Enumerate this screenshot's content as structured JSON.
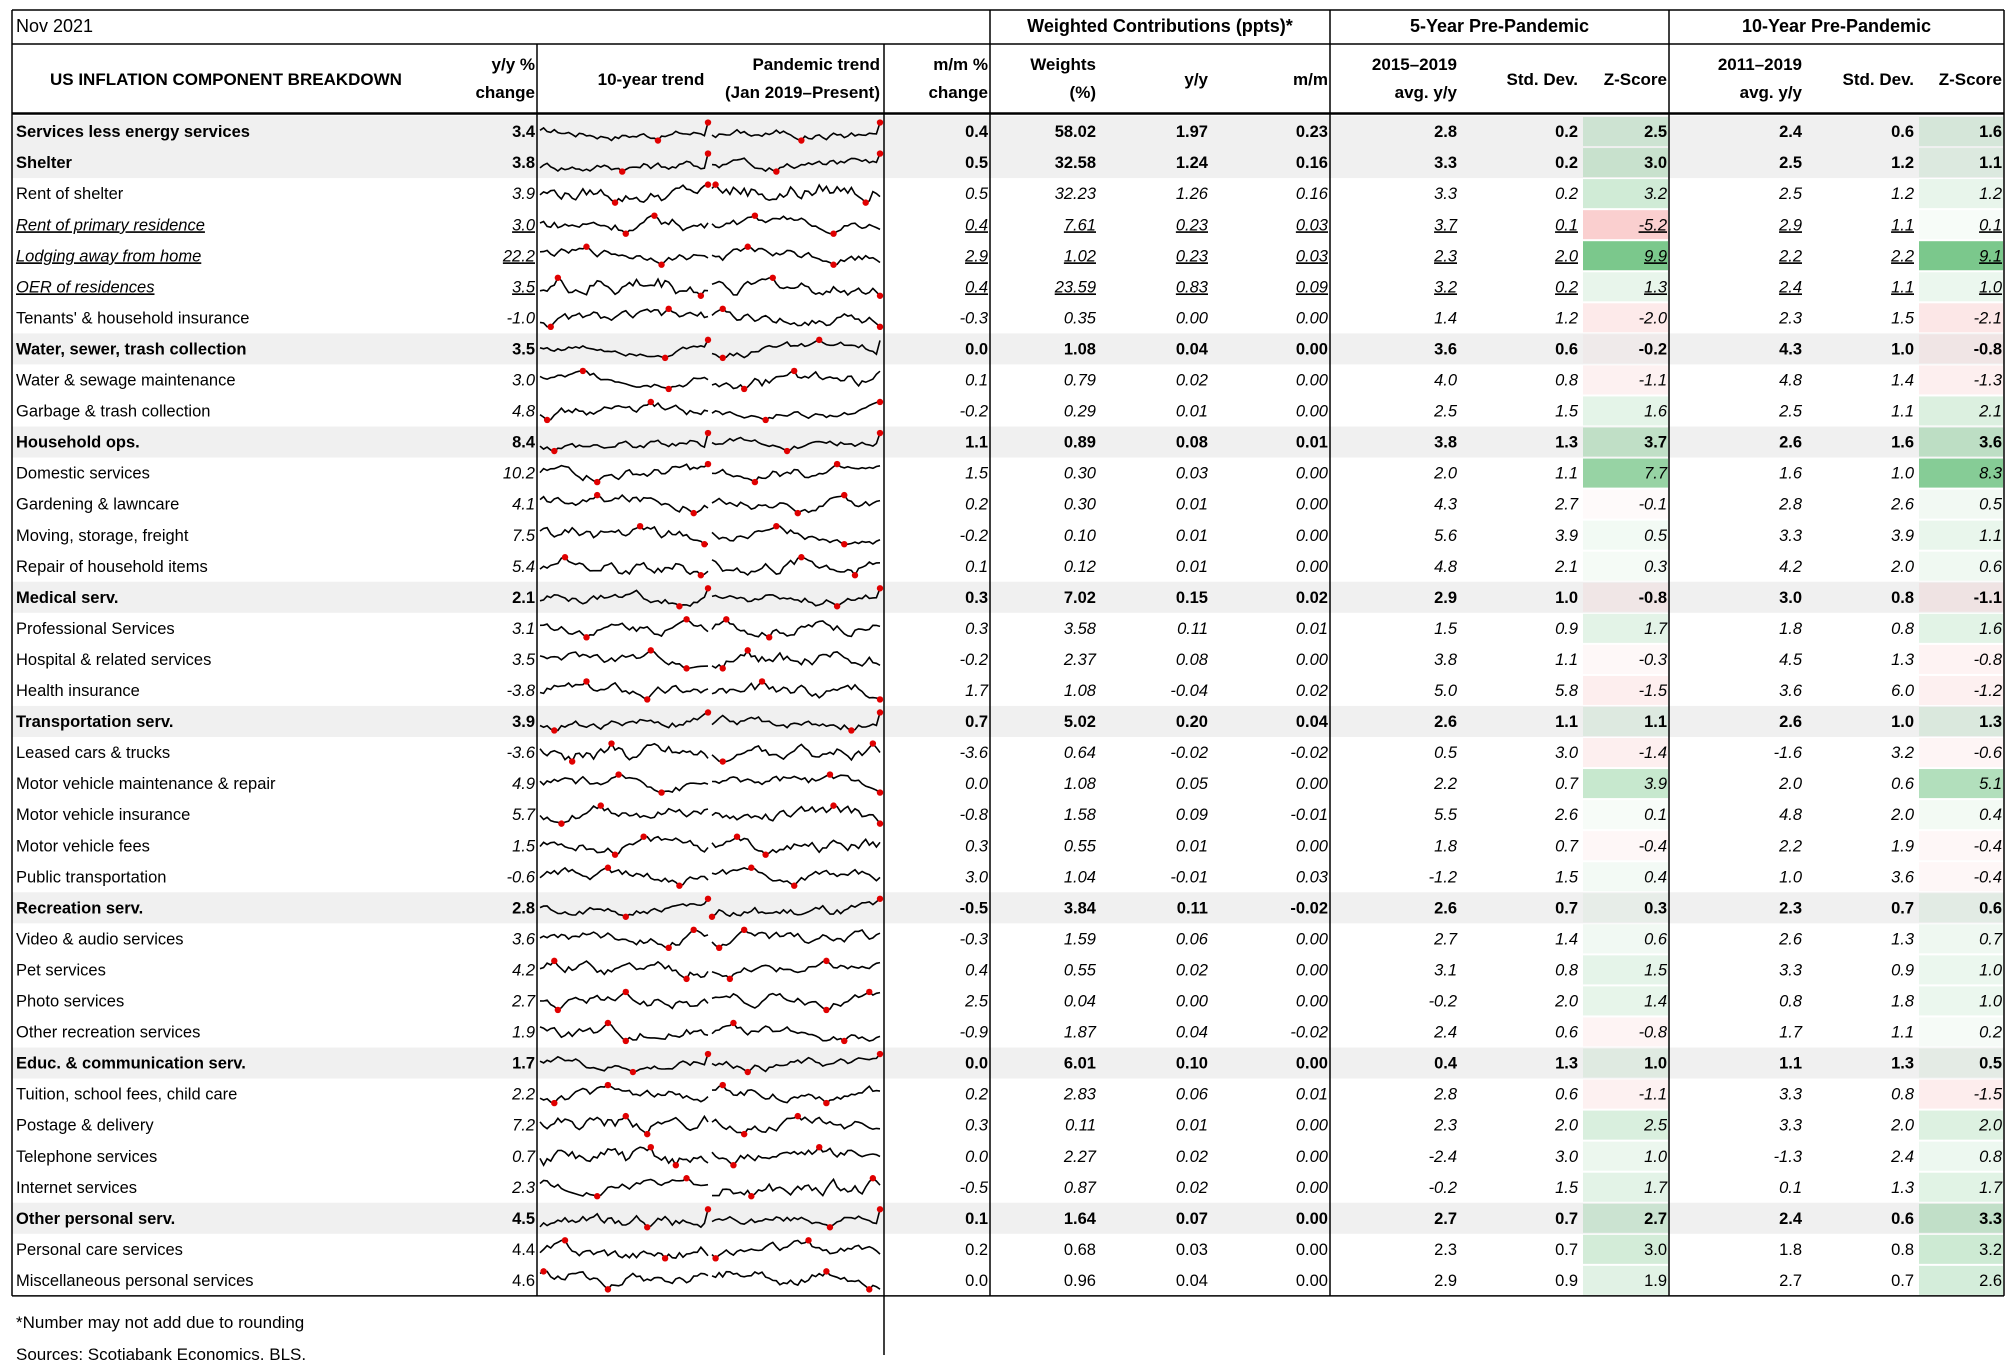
{
  "date_label": "Nov 2021",
  "group_headers": {
    "weighted": "Weighted Contributions (ppts)*",
    "five_year": "5-Year Pre-Pandemic",
    "ten_year": "10-Year Pre-Pandemic"
  },
  "columns": {
    "name": "US INFLATION COMPONENT BREAKDOWN",
    "yy_line1": "y/y %",
    "yy_line2": "change",
    "trend10": "10-year trend",
    "pandemic_line1": "Pandemic trend",
    "pandemic_line2": "(Jan 2019–Present)",
    "mm_line1": "m/m %",
    "mm_line2": "change",
    "weights_line1": "Weights",
    "weights_line2": "(%)",
    "w_yy": "y/y",
    "w_mm": "m/m",
    "avg5_line1": "2015–2019",
    "avg5_line2": "avg. y/y",
    "std5": "Std. Dev.",
    "z5": "Z-Score",
    "avg10_line1": "2011–2019",
    "avg10_line2": "avg. y/y",
    "std10": "Std. Dev.",
    "z10": "Z-Score"
  },
  "rows": [
    {
      "name": "Services less energy services",
      "style": "bold",
      "yy": "3.4",
      "mm": "0.4",
      "weights": "58.02",
      "w_yy": "1.97",
      "w_mm": "0.23",
      "avg5": "2.8",
      "std5": "0.2",
      "z5": "2.5",
      "avg10": "2.4",
      "std10": "0.6",
      "z10": "1.6"
    },
    {
      "name": "Shelter",
      "style": "bold",
      "yy": "3.8",
      "mm": "0.5",
      "weights": "32.58",
      "w_yy": "1.24",
      "w_mm": "0.16",
      "avg5": "3.3",
      "std5": "0.2",
      "z5": "3.0",
      "avg10": "2.5",
      "std10": "1.2",
      "z10": "1.1"
    },
    {
      "name": "Rent of shelter",
      "style": "italic",
      "yy": "3.9",
      "mm": "0.5",
      "weights": "32.23",
      "w_yy": "1.26",
      "w_mm": "0.16",
      "avg5": "3.3",
      "std5": "0.2",
      "z5": "3.2",
      "avg10": "2.5",
      "std10": "1.2",
      "z10": "1.2"
    },
    {
      "name": "Rent of  primary residence",
      "style": "underline",
      "yy": "3.0",
      "mm": "0.4",
      "weights": "7.61",
      "w_yy": "0.23",
      "w_mm": "0.03",
      "avg5": "3.7",
      "std5": "0.1",
      "z5": "-5.2",
      "avg10": "2.9",
      "std10": "1.1",
      "z10": "0.1"
    },
    {
      "name": "Lodging away from home",
      "style": "underline",
      "yy": "22.2",
      "mm": "2.9",
      "weights": "1.02",
      "w_yy": "0.23",
      "w_mm": "0.03",
      "avg5": "2.3",
      "std5": "2.0",
      "z5": "9.9",
      "avg10": "2.2",
      "std10": "2.2",
      "z10": "9.1"
    },
    {
      "name": "OER of residences",
      "style": "underline",
      "yy": "3.5",
      "mm": "0.4",
      "weights": "23.59",
      "w_yy": "0.83",
      "w_mm": "0.09",
      "avg5": "3.2",
      "std5": "0.2",
      "z5": "1.3",
      "avg10": "2.4",
      "std10": "1.1",
      "z10": "1.0"
    },
    {
      "name": "Tenants' & household insurance",
      "style": "italic",
      "yy": "-1.0",
      "mm": "-0.3",
      "weights": "0.35",
      "w_yy": "0.00",
      "w_mm": "0.00",
      "avg5": "1.4",
      "std5": "1.2",
      "z5": "-2.0",
      "avg10": "2.3",
      "std10": "1.5",
      "z10": "-2.1"
    },
    {
      "name": "Water, sewer, trash collection",
      "style": "bold",
      "yy": "3.5",
      "mm": "0.0",
      "weights": "1.08",
      "w_yy": "0.04",
      "w_mm": "0.00",
      "avg5": "3.6",
      "std5": "0.6",
      "z5": "-0.2",
      "avg10": "4.3",
      "std10": "1.0",
      "z10": "-0.8"
    },
    {
      "name": "Water & sewage maintenance",
      "style": "italic",
      "yy": "3.0",
      "mm": "0.1",
      "weights": "0.79",
      "w_yy": "0.02",
      "w_mm": "0.00",
      "avg5": "4.0",
      "std5": "0.8",
      "z5": "-1.1",
      "avg10": "4.8",
      "std10": "1.4",
      "z10": "-1.3"
    },
    {
      "name": "Garbage & trash collection",
      "style": "italic",
      "yy": "4.8",
      "mm": "-0.2",
      "weights": "0.29",
      "w_yy": "0.01",
      "w_mm": "0.00",
      "avg5": "2.5",
      "std5": "1.5",
      "z5": "1.6",
      "avg10": "2.5",
      "std10": "1.1",
      "z10": "2.1"
    },
    {
      "name": "Household ops.",
      "style": "bold",
      "yy": "8.4",
      "mm": "1.1",
      "weights": "0.89",
      "w_yy": "0.08",
      "w_mm": "0.01",
      "avg5": "3.8",
      "std5": "1.3",
      "z5": "3.7",
      "avg10": "2.6",
      "std10": "1.6",
      "z10": "3.6"
    },
    {
      "name": "Domestic services",
      "style": "italic",
      "yy": "10.2",
      "mm": "1.5",
      "weights": "0.30",
      "w_yy": "0.03",
      "w_mm": "0.00",
      "avg5": "2.0",
      "std5": "1.1",
      "z5": "7.7",
      "avg10": "1.6",
      "std10": "1.0",
      "z10": "8.3"
    },
    {
      "name": "Gardening & lawncare",
      "style": "italic",
      "yy": "4.1",
      "mm": "0.2",
      "weights": "0.30",
      "w_yy": "0.01",
      "w_mm": "0.00",
      "avg5": "4.3",
      "std5": "2.7",
      "z5": "-0.1",
      "avg10": "2.8",
      "std10": "2.6",
      "z10": "0.5"
    },
    {
      "name": "Moving, storage, freight",
      "style": "italic",
      "yy": "7.5",
      "mm": "-0.2",
      "weights": "0.10",
      "w_yy": "0.01",
      "w_mm": "0.00",
      "avg5": "5.6",
      "std5": "3.9",
      "z5": "0.5",
      "avg10": "3.3",
      "std10": "3.9",
      "z10": "1.1"
    },
    {
      "name": "Repair of household items",
      "style": "italic",
      "yy": "5.4",
      "mm": "0.1",
      "weights": "0.12",
      "w_yy": "0.01",
      "w_mm": "0.00",
      "avg5": "4.8",
      "std5": "2.1",
      "z5": "0.3",
      "avg10": "4.2",
      "std10": "2.0",
      "z10": "0.6"
    },
    {
      "name": "Medical serv.",
      "style": "bold",
      "yy": "2.1",
      "mm": "0.3",
      "weights": "7.02",
      "w_yy": "0.15",
      "w_mm": "0.02",
      "avg5": "2.9",
      "std5": "1.0",
      "z5": "-0.8",
      "avg10": "3.0",
      "std10": "0.8",
      "z10": "-1.1"
    },
    {
      "name": "Professional Services",
      "style": "italic",
      "yy": "3.1",
      "mm": "0.3",
      "weights": "3.58",
      "w_yy": "0.11",
      "w_mm": "0.01",
      "avg5": "1.5",
      "std5": "0.9",
      "z5": "1.7",
      "avg10": "1.8",
      "std10": "0.8",
      "z10": "1.6"
    },
    {
      "name": "Hospital & related services",
      "style": "italic",
      "yy": "3.5",
      "mm": "-0.2",
      "weights": "2.37",
      "w_yy": "0.08",
      "w_mm": "0.00",
      "avg5": "3.8",
      "std5": "1.1",
      "z5": "-0.3",
      "avg10": "4.5",
      "std10": "1.3",
      "z10": "-0.8"
    },
    {
      "name": "Health insurance",
      "style": "italic",
      "yy": "-3.8",
      "mm": "1.7",
      "weights": "1.08",
      "w_yy": "-0.04",
      "w_mm": "0.02",
      "avg5": "5.0",
      "std5": "5.8",
      "z5": "-1.5",
      "avg10": "3.6",
      "std10": "6.0",
      "z10": "-1.2"
    },
    {
      "name": "Transportation serv.",
      "style": "bold",
      "yy": "3.9",
      "mm": "0.7",
      "weights": "5.02",
      "w_yy": "0.20",
      "w_mm": "0.04",
      "avg5": "2.6",
      "std5": "1.1",
      "z5": "1.1",
      "avg10": "2.6",
      "std10": "1.0",
      "z10": "1.3"
    },
    {
      "name": "Leased cars & trucks",
      "style": "italic",
      "yy": "-3.6",
      "mm": "-3.6",
      "weights": "0.64",
      "w_yy": "-0.02",
      "w_mm": "-0.02",
      "avg5": "0.5",
      "std5": "3.0",
      "z5": "-1.4",
      "avg10": "-1.6",
      "std10": "3.2",
      "z10": "-0.6"
    },
    {
      "name": "Motor vehicle maintenance & repair",
      "style": "italic",
      "yy": "4.9",
      "mm": "0.0",
      "weights": "1.08",
      "w_yy": "0.05",
      "w_mm": "0.00",
      "avg5": "2.2",
      "std5": "0.7",
      "z5": "3.9",
      "avg10": "2.0",
      "std10": "0.6",
      "z10": "5.1"
    },
    {
      "name": "Motor vehicle insurance",
      "style": "italic",
      "yy": "5.7",
      "mm": "-0.8",
      "weights": "1.58",
      "w_yy": "0.09",
      "w_mm": "-0.01",
      "avg5": "5.5",
      "std5": "2.6",
      "z5": "0.1",
      "avg10": "4.8",
      "std10": "2.0",
      "z10": "0.4"
    },
    {
      "name": "Motor vehicle fees",
      "style": "italic",
      "yy": "1.5",
      "mm": "0.3",
      "weights": "0.55",
      "w_yy": "0.01",
      "w_mm": "0.00",
      "avg5": "1.8",
      "std5": "0.7",
      "z5": "-0.4",
      "avg10": "2.2",
      "std10": "1.9",
      "z10": "-0.4"
    },
    {
      "name": "Public transportation",
      "style": "italic",
      "yy": "-0.6",
      "mm": "3.0",
      "weights": "1.04",
      "w_yy": "-0.01",
      "w_mm": "0.03",
      "avg5": "-1.2",
      "std5": "1.5",
      "z5": "0.4",
      "avg10": "1.0",
      "std10": "3.6",
      "z10": "-0.4"
    },
    {
      "name": "Recreation serv.",
      "style": "bold",
      "yy": "2.8",
      "mm": "-0.5",
      "weights": "3.84",
      "w_yy": "0.11",
      "w_mm": "-0.02",
      "avg5": "2.6",
      "std5": "0.7",
      "z5": "0.3",
      "avg10": "2.3",
      "std10": "0.7",
      "z10": "0.6"
    },
    {
      "name": "Video & audio services",
      "style": "italic",
      "yy": "3.6",
      "mm": "-0.3",
      "weights": "1.59",
      "w_yy": "0.06",
      "w_mm": "0.00",
      "avg5": "2.7",
      "std5": "1.4",
      "z5": "0.6",
      "avg10": "2.6",
      "std10": "1.3",
      "z10": "0.7"
    },
    {
      "name": "Pet services",
      "style": "italic",
      "yy": "4.2",
      "mm": "0.4",
      "weights": "0.55",
      "w_yy": "0.02",
      "w_mm": "0.00",
      "avg5": "3.1",
      "std5": "0.8",
      "z5": "1.5",
      "avg10": "3.3",
      "std10": "0.9",
      "z10": "1.0"
    },
    {
      "name": "Photo services",
      "style": "italic",
      "yy": "2.7",
      "mm": "2.5",
      "weights": "0.04",
      "w_yy": "0.00",
      "w_mm": "0.00",
      "avg5": "-0.2",
      "std5": "2.0",
      "z5": "1.4",
      "avg10": "0.8",
      "std10": "1.8",
      "z10": "1.0"
    },
    {
      "name": "Other recreation services",
      "style": "italic",
      "yy": "1.9",
      "mm": "-0.9",
      "weights": "1.87",
      "w_yy": "0.04",
      "w_mm": "-0.02",
      "avg5": "2.4",
      "std5": "0.6",
      "z5": "-0.8",
      "avg10": "1.7",
      "std10": "1.1",
      "z10": "0.2"
    },
    {
      "name": "Educ. & communication serv.",
      "style": "bold",
      "yy": "1.7",
      "mm": "0.0",
      "weights": "6.01",
      "w_yy": "0.10",
      "w_mm": "0.00",
      "avg5": "0.4",
      "std5": "1.3",
      "z5": "1.0",
      "avg10": "1.1",
      "std10": "1.3",
      "z10": "0.5"
    },
    {
      "name": "Tuition, school fees, child care",
      "style": "italic",
      "yy": "2.2",
      "mm": "0.2",
      "weights": "2.83",
      "w_yy": "0.06",
      "w_mm": "0.01",
      "avg5": "2.8",
      "std5": "0.6",
      "z5": "-1.1",
      "avg10": "3.3",
      "std10": "0.8",
      "z10": "-1.5"
    },
    {
      "name": "Postage & delivery",
      "style": "italic",
      "yy": "7.2",
      "mm": "0.3",
      "weights": "0.11",
      "w_yy": "0.01",
      "w_mm": "0.00",
      "avg5": "2.3",
      "std5": "2.0",
      "z5": "2.5",
      "avg10": "3.3",
      "std10": "2.0",
      "z10": "2.0"
    },
    {
      "name": "Telephone services",
      "style": "italic",
      "yy": "0.7",
      "mm": "0.0",
      "weights": "2.27",
      "w_yy": "0.02",
      "w_mm": "0.00",
      "avg5": "-2.4",
      "std5": "3.0",
      "z5": "1.0",
      "avg10": "-1.3",
      "std10": "2.4",
      "z10": "0.8"
    },
    {
      "name": "Internet services",
      "style": "italic",
      "yy": "2.3",
      "mm": "-0.5",
      "weights": "0.87",
      "w_yy": "0.02",
      "w_mm": "0.00",
      "avg5": "-0.2",
      "std5": "1.5",
      "z5": "1.7",
      "avg10": "0.1",
      "std10": "1.3",
      "z10": "1.7"
    },
    {
      "name": "Other personal serv.",
      "style": "bold",
      "yy": "4.5",
      "mm": "0.1",
      "weights": "1.64",
      "w_yy": "0.07",
      "w_mm": "0.00",
      "avg5": "2.7",
      "std5": "0.7",
      "z5": "2.7",
      "avg10": "2.4",
      "std10": "0.6",
      "z10": "3.3"
    },
    {
      "name": "Personal care services",
      "style": "plain",
      "yy": "4.4",
      "mm": "0.2",
      "weights": "0.68",
      "w_yy": "0.03",
      "w_mm": "0.00",
      "avg5": "2.3",
      "std5": "0.7",
      "z5": "3.0",
      "avg10": "1.8",
      "std10": "0.8",
      "z10": "3.2"
    },
    {
      "name": "Miscellaneous personal services",
      "style": "plain",
      "yy": "4.6",
      "mm": "0.0",
      "weights": "0.96",
      "w_yy": "0.04",
      "w_mm": "0.00",
      "avg5": "2.9",
      "std5": "0.9",
      "z5": "1.9",
      "avg10": "2.7",
      "std10": "0.7",
      "z10": "2.6"
    }
  ],
  "footnotes": {
    "note": "*Number may not add due to rounding",
    "sources": "Sources: Scotiabank Economics, BLS."
  },
  "colors": {
    "negative_z": "#f4b6b6",
    "positive_z": "#8fd19e",
    "section_band": "#f0f0f0",
    "sparkline": "#000000",
    "marker": "#e00000"
  },
  "chart_data": {
    "type": "table",
    "title": "US INFLATION COMPONENT BREAKDOWN",
    "subtitle": "Nov 2021",
    "sparklines": {
      "trend10": "10-year trend",
      "pandemic": "Pandemic trend (Jan 2019–Present)",
      "marker": "red dots mark local extremes"
    }
  }
}
